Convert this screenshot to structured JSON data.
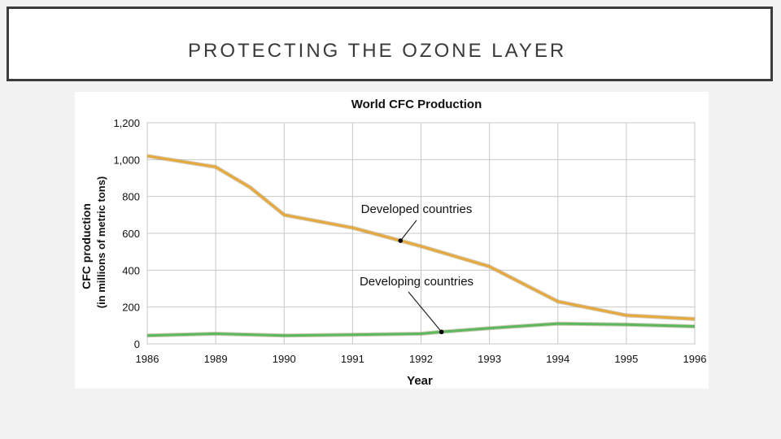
{
  "slide": {
    "title": "PROTECTING THE OZONE LAYER"
  },
  "chart_data": {
    "type": "line",
    "title": "World CFC Production",
    "xlabel": "Year",
    "ylabel": "CFC production",
    "ylabel2": "(in millions of metric tons)",
    "categories": [
      "1986",
      "1989",
      "1990",
      "1991",
      "1992",
      "1993",
      "1994",
      "1995",
      "1996"
    ],
    "y_ticks": [
      "0",
      "200",
      "400",
      "600",
      "800",
      "1,000",
      "1,200"
    ],
    "ylim": [
      0,
      1200
    ],
    "grid": true,
    "series": [
      {
        "name": "Developed countries",
        "color": "#e8a93c",
        "points": [
          [
            0,
            1020
          ],
          [
            1,
            960
          ],
          [
            1.5,
            850
          ],
          [
            2,
            700
          ],
          [
            3,
            630
          ],
          [
            3.7,
            560
          ],
          [
            4,
            530
          ],
          [
            5,
            420
          ],
          [
            6,
            230
          ],
          [
            7,
            155
          ],
          [
            8,
            135
          ]
        ]
      },
      {
        "name": "Developing countries",
        "color": "#5cb85c",
        "points": [
          [
            0,
            45
          ],
          [
            1,
            55
          ],
          [
            2,
            45
          ],
          [
            3,
            50
          ],
          [
            4,
            55
          ],
          [
            4.3,
            65
          ],
          [
            5,
            85
          ],
          [
            6,
            110
          ],
          [
            7,
            105
          ],
          [
            8,
            95
          ]
        ]
      }
    ],
    "annotations": [
      {
        "label": "Developed countries",
        "series": 0,
        "at": [
          3.7,
          560
        ]
      },
      {
        "label": "Developing countries",
        "series": 1,
        "at": [
          4.3,
          65
        ]
      }
    ]
  }
}
